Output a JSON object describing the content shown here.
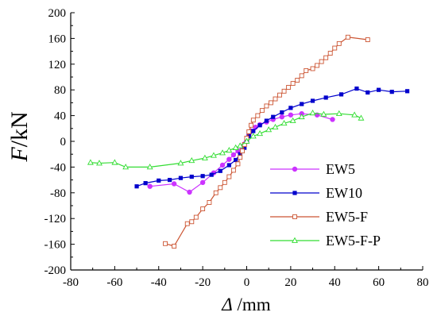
{
  "chart_data": {
    "type": "line",
    "title": "",
    "xlabel": "Δ /mm",
    "ylabel": "F/kN",
    "xlabel_symbol": "Δ",
    "xlabel_unit": " /mm",
    "ylabel_symbol": "F",
    "ylabel_unit": "/kN",
    "xlim": [
      -80,
      80
    ],
    "ylim": [
      -200,
      200
    ],
    "xticks": [
      -80,
      -60,
      -40,
      -20,
      0,
      20,
      40,
      60,
      80
    ],
    "yticks": [
      -200,
      -160,
      -120,
      -80,
      -40,
      0,
      40,
      80,
      120,
      160,
      200
    ],
    "grid": false,
    "legend_position": "lower-right",
    "series": [
      {
        "name": "EW5",
        "color": "#cc33ff",
        "marker": "circle-filled",
        "points": [
          [
            -44,
            -70
          ],
          [
            -33,
            -66
          ],
          [
            -26,
            -79
          ],
          [
            -20,
            -64
          ],
          [
            -15,
            -49
          ],
          [
            -11,
            -37
          ],
          [
            -8,
            -28
          ],
          [
            -6,
            -21
          ],
          [
            -4,
            -15
          ],
          [
            -2,
            -8
          ],
          [
            -1,
            -4
          ],
          [
            0,
            0
          ],
          [
            1,
            10
          ],
          [
            2,
            16
          ],
          [
            4,
            22
          ],
          [
            6,
            26
          ],
          [
            9,
            30
          ],
          [
            12,
            34
          ],
          [
            16,
            38
          ],
          [
            20,
            41
          ],
          [
            25,
            43
          ],
          [
            32,
            41
          ],
          [
            39,
            34
          ]
        ]
      },
      {
        "name": "EW10",
        "color": "#0000cc",
        "marker": "square-filled",
        "points": [
          [
            -50,
            -70
          ],
          [
            -46,
            -65
          ],
          [
            -40,
            -61
          ],
          [
            -35,
            -60
          ],
          [
            -30,
            -57
          ],
          [
            -25,
            -55
          ],
          [
            -20,
            -54
          ],
          [
            -16,
            -52
          ],
          [
            -12,
            -46
          ],
          [
            -8,
            -37
          ],
          [
            -5,
            -29
          ],
          [
            -3,
            -20
          ],
          [
            -1,
            -10
          ],
          [
            0,
            0
          ],
          [
            1,
            8
          ],
          [
            3,
            16
          ],
          [
            6,
            25
          ],
          [
            9,
            32
          ],
          [
            12,
            38
          ],
          [
            16,
            45
          ],
          [
            20,
            52
          ],
          [
            25,
            58
          ],
          [
            30,
            63
          ],
          [
            36,
            68
          ],
          [
            43,
            73
          ],
          [
            50,
            82
          ],
          [
            55,
            76
          ],
          [
            60,
            80
          ],
          [
            66,
            77
          ],
          [
            73,
            78
          ]
        ]
      },
      {
        "name": "EW5-F",
        "color": "#cc5533",
        "marker": "square-open",
        "points": [
          [
            -37,
            -159
          ],
          [
            -33,
            -163
          ],
          [
            -27,
            -128
          ],
          [
            -25,
            -125
          ],
          [
            -23,
            -118
          ],
          [
            -20,
            -105
          ],
          [
            -17,
            -95
          ],
          [
            -14,
            -80
          ],
          [
            -12,
            -72
          ],
          [
            -10,
            -64
          ],
          [
            -8,
            -55
          ],
          [
            -6,
            -45
          ],
          [
            -4,
            -35
          ],
          [
            -3,
            -25
          ],
          [
            -2,
            -15
          ],
          [
            -1,
            -5
          ],
          [
            0,
            5
          ],
          [
            1,
            15
          ],
          [
            2,
            25
          ],
          [
            3,
            33
          ],
          [
            5,
            40
          ],
          [
            7,
            48
          ],
          [
            9,
            55
          ],
          [
            11,
            60
          ],
          [
            13,
            66
          ],
          [
            15,
            72
          ],
          [
            17,
            78
          ],
          [
            19,
            84
          ],
          [
            21,
            90
          ],
          [
            23,
            95
          ],
          [
            25,
            102
          ],
          [
            27,
            110
          ],
          [
            30,
            113
          ],
          [
            32,
            118
          ],
          [
            34,
            124
          ],
          [
            36,
            130
          ],
          [
            38,
            137
          ],
          [
            40,
            145
          ],
          [
            42,
            152
          ],
          [
            46,
            162
          ],
          [
            55,
            158
          ]
        ]
      },
      {
        "name": "EW5-F-P",
        "color": "#33dd33",
        "marker": "triangle-open",
        "points": [
          [
            -71,
            -33
          ],
          [
            -67,
            -34
          ],
          [
            -60,
            -33
          ],
          [
            -55,
            -40
          ],
          [
            -44,
            -40
          ],
          [
            -30,
            -34
          ],
          [
            -25,
            -30
          ],
          [
            -19,
            -26
          ],
          [
            -15,
            -22
          ],
          [
            -11,
            -18
          ],
          [
            -8,
            -14
          ],
          [
            -5,
            -10
          ],
          [
            -3,
            -7
          ],
          [
            0,
            0
          ],
          [
            3,
            8
          ],
          [
            6,
            12
          ],
          [
            10,
            18
          ],
          [
            13,
            22
          ],
          [
            17,
            28
          ],
          [
            21,
            32
          ],
          [
            25,
            38
          ],
          [
            30,
            44
          ],
          [
            35,
            42
          ],
          [
            42,
            43
          ],
          [
            49,
            41
          ],
          [
            52,
            36
          ]
        ]
      }
    ]
  }
}
